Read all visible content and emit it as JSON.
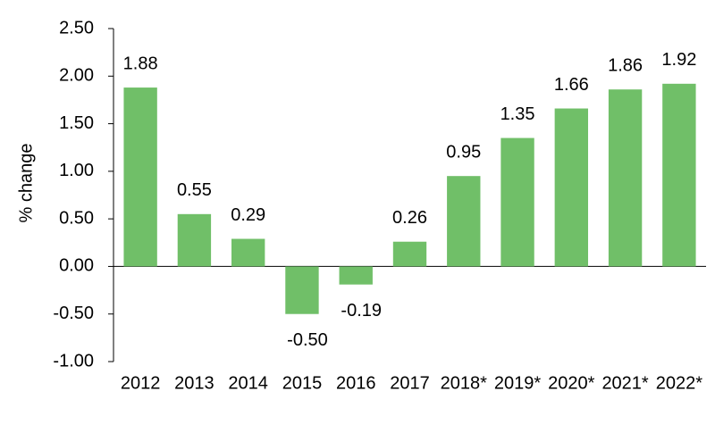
{
  "chart_data": {
    "type": "bar",
    "y_label": "% change",
    "categories": [
      "2012",
      "2013",
      "2014",
      "2015",
      "2016",
      "2017",
      "2018*",
      "2019*",
      "2020*",
      "2021*",
      "2022*"
    ],
    "values": [
      1.88,
      0.55,
      0.29,
      -0.5,
      -0.19,
      0.26,
      0.95,
      1.35,
      1.66,
      1.86,
      1.92
    ],
    "value_labels": [
      "1.88",
      "0.55",
      "0.29",
      "-0.50",
      "-0.19",
      "0.26",
      "0.95",
      "1.35",
      "1.66",
      "1.86",
      "1.92"
    ],
    "color": "#70bf68",
    "ylim": [
      -1.0,
      2.5
    ],
    "yticks": [
      {
        "value": -1.0,
        "label": "-1.00"
      },
      {
        "value": -0.5,
        "label": "-0.50"
      },
      {
        "value": 0,
        "label": "0.00"
      },
      {
        "value": 0.5,
        "label": "0.50"
      },
      {
        "value": 1.0,
        "label": "1.00"
      },
      {
        "value": 1.5,
        "label": "1.50"
      },
      {
        "value": 2.0,
        "label": "2.00"
      },
      {
        "value": 2.5,
        "label": "2.50"
      }
    ],
    "grid": false
  }
}
